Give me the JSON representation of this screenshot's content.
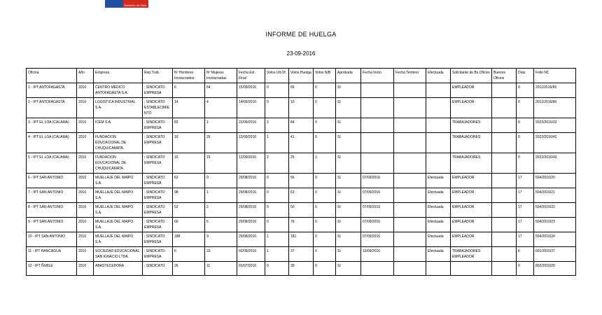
{
  "header": {
    "logo_text": "Gobierno de Chile",
    "title": "INFORME DE HUELGA",
    "date": "23-09-2016"
  },
  "table": {
    "columns": [
      "Oficina",
      "Año",
      "Empresa",
      "Rep.Trab.",
      "Nº Hombres Involucrados",
      "Nº Mujeres Involucradas",
      "Fecha Ext. Final",
      "Votos Ult.Of.",
      "Votos Huelga",
      "Votos N/B",
      "Aprobada",
      "Fecha Inicio",
      "Fecha Termino",
      "Efectuada",
      "Solicitante de Bs.Oficios",
      "Buenos Oficios",
      "Días",
      "Folio NC"
    ],
    "rows": [
      [
        "1 - IPT ANTOFAGASTA",
        "2016",
        "CENTRO MEDICO ANTOFAGASTA S.A.",
        "; SINDICATO EMPRESA",
        "6",
        "64",
        "15/09/2016",
        "0",
        "66",
        "0",
        "SI",
        "",
        "",
        "",
        "EMPLEADOR",
        "",
        "0",
        "2011/2016/65"
      ],
      [
        "2 - IPT ANTOFAGASTA",
        "2016",
        "LOGISTICA INDUSTRIAL S.A.",
        "; SINDICATO ESTABLECIMIENTO",
        "14",
        "4",
        "14/09/2016",
        "0",
        "10",
        "0",
        "SI",
        "",
        "",
        "",
        "EMPLEADOR",
        "",
        "0",
        "2011/2016/66"
      ],
      [
        "3 - IPT EL LOA (CALAMA)",
        "2016",
        "ICEM S.A.",
        "; SINDICATO EMPRESA",
        "82",
        "1",
        "22/09/2016",
        "2",
        "84",
        "0",
        "SI",
        "",
        "",
        "",
        "TRABAJADORES",
        "",
        "0",
        "2022/2016/32"
      ],
      [
        "4 - IPT EL LOA (CALAMA)",
        "2016",
        "FUNDACION EDUCACIONAL DE CHUQUICAMATA.",
        "; SINDICATO EMPRESA",
        "16",
        "26",
        "12/09/2016",
        "1",
        "41",
        "0",
        "SI",
        "",
        "",
        "",
        "TRABAJADORES",
        "",
        "0",
        "2022/2016/42"
      ],
      [
        "5 - IPT EL LOA (CALAMA)",
        "2016",
        "FUNDACION EDUCACIONAL DE CHUQUICAMATA.",
        "; SINDICATO EMPRESA",
        "15",
        "15",
        "12/09/2016",
        "2",
        "25",
        "1",
        "SI",
        "",
        "",
        "",
        "TRABAJADORES",
        "",
        "0",
        "2022/2016/43"
      ],
      [
        "6 - IPT SAN ANTONIO",
        "2016",
        "MUELLAJE DEL MAIPO S.A.",
        "; SINDICATO EMPRESA",
        "62",
        "0",
        "29/08/2016",
        "0",
        "56",
        "0",
        "SI",
        "07/09/2016",
        "",
        "Efectuada",
        "EMPLEADOR",
        "",
        "17",
        "504/2016/20"
      ],
      [
        "7 - IPT SAN ANTONIO",
        "2016",
        "MUELLAJE DEL MAIPO S.A.",
        "; SINDICATO EMPRESA",
        "98",
        "1",
        "29/08/2016",
        "0",
        "63",
        "0",
        "SI",
        "07/09/2016",
        "",
        "Efectuada",
        "EMPLEADOR",
        "",
        "17",
        "504/2016/21"
      ],
      [
        "8 - IPT SAN ANTONIO",
        "2016",
        "MUELLAJE DEL MAIPO S.A.",
        "; SINDICATO EMPRESA",
        "52",
        "2",
        "29/08/2016",
        "0",
        "50",
        "0",
        "SI",
        "07/09/2016",
        "",
        "Efectuada",
        "EMPLEADOR",
        "",
        "17",
        "504/2016/22"
      ],
      [
        "9 - IPT SAN ANTONIO",
        "2016",
        "MUELLAJE DEL MAIPO S.A.",
        "; SINDICATO EMPRESA",
        "66",
        "5",
        "29/08/2016",
        "0",
        "76",
        "0",
        "SI",
        "07/09/2016",
        "",
        "Efectuada",
        "EMPLEADOR",
        "",
        "17",
        "504/2016/23"
      ],
      [
        "10 - IPT SAN ANTONIO",
        "2016",
        "MUELLAJE DEL MAIPO S.A.",
        "; SINDICATO EMPRESA",
        "188",
        "9",
        "29/08/2016",
        "1",
        "181",
        "0",
        "SI",
        "07/09/2016",
        "",
        "Efectuada",
        "EMPLEADOR",
        "",
        "17",
        "504/2016/24"
      ],
      [
        "11 - IPT RANCAGUA",
        "2016",
        "SOCIEDAD EDUCACIONAL SAN IGNACIO LTDA.",
        "; SINDICATO EMPRESA",
        "6",
        "33",
        "02/09/2016",
        "1",
        "37",
        "0",
        "SI",
        "15/09/2016",
        "",
        "Efectuada",
        "TRABAJADORES EMPLEADOR",
        "",
        "6",
        "601/2016/37"
      ],
      [
        "12 - IPT ÑUBLE",
        "2016",
        "ABASTECEDORA",
        "; SINDICATO",
        "26",
        "11",
        "01/07/2016",
        "0",
        "39",
        "0",
        "SI",
        "",
        "",
        "",
        "",
        "",
        "0",
        "802/2016/29"
      ]
    ]
  }
}
